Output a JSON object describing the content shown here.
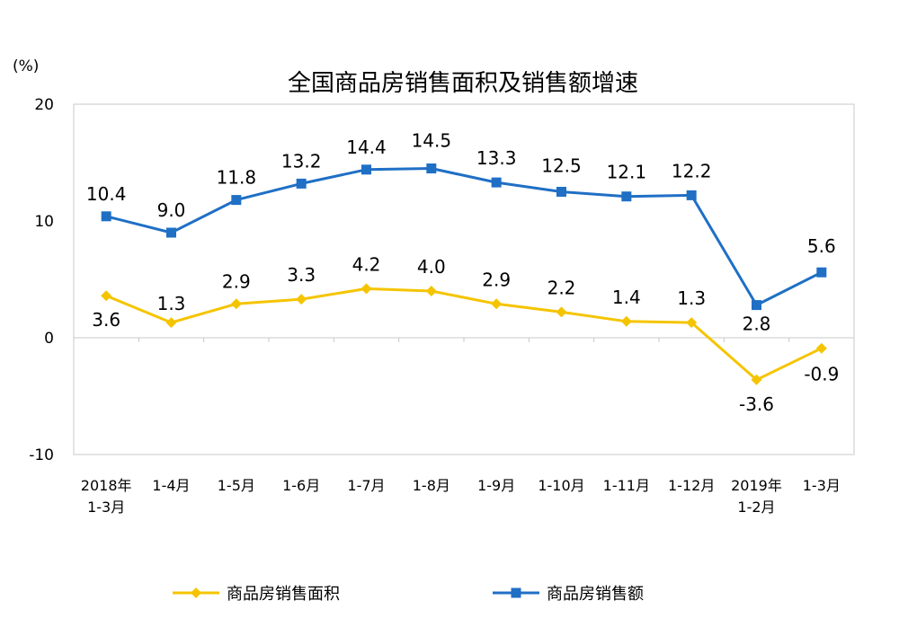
{
  "chart_data": {
    "type": "line",
    "title": "全国商品房销售面积及销售额增速",
    "unit_label": "(%)",
    "ylim": [
      -10,
      20
    ],
    "yticks": [
      "20",
      "10",
      "0",
      "-10"
    ],
    "grid": false,
    "legend_position": "bottom",
    "categories": [
      [
        "2018年",
        "1-3月"
      ],
      [
        "1-4月"
      ],
      [
        "1-5月"
      ],
      [
        "1-6月"
      ],
      [
        "1-7月"
      ],
      [
        "1-8月"
      ],
      [
        "1-9月"
      ],
      [
        "1-10月"
      ],
      [
        "1-11月"
      ],
      [
        "1-12月"
      ],
      [
        "2019年",
        "1-2月"
      ],
      [
        "1-3月"
      ]
    ],
    "series": [
      {
        "name": "商品房销售面积",
        "color": "#F5C400",
        "marker": "diamond",
        "values": [
          3.6,
          1.3,
          2.9,
          3.3,
          4.2,
          4.0,
          2.9,
          2.2,
          1.4,
          1.3,
          -3.6,
          -0.9
        ],
        "labels": [
          "3.6",
          "1.3",
          "2.9",
          "3.3",
          "4.2",
          "4.0",
          "2.9",
          "2.2",
          "1.4",
          "1.3",
          "-3.6",
          "-0.9"
        ]
      },
      {
        "name": "商品房销售额",
        "color": "#1F6FC5",
        "marker": "square",
        "values": [
          10.4,
          9.0,
          11.8,
          13.2,
          14.4,
          14.5,
          13.3,
          12.5,
          12.1,
          12.2,
          2.8,
          5.6
        ],
        "labels": [
          "10.4",
          "9.0",
          "11.8",
          "13.2",
          "14.4",
          "14.5",
          "13.3",
          "12.5",
          "12.1",
          "12.2",
          "2.8",
          "5.6"
        ]
      }
    ]
  }
}
